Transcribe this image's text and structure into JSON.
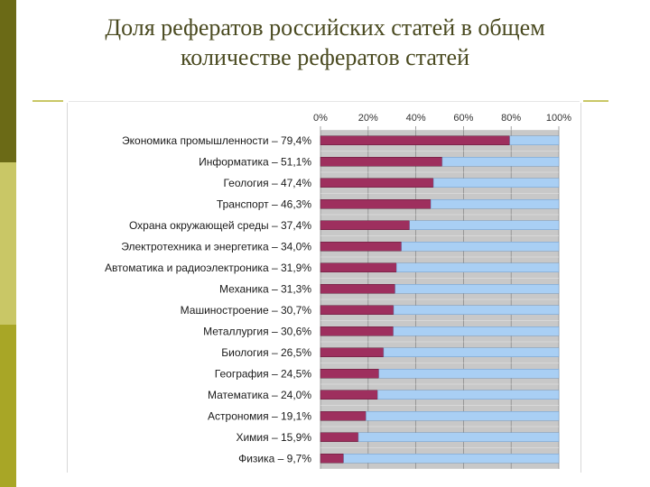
{
  "title": {
    "line1": "Доля рефератов российских статей в общем",
    "line2": "количестве рефератов статей"
  },
  "colors": {
    "share": "#9e2f5e",
    "rest": "#a9cff4",
    "grid": "#c0c0c0",
    "accent_dark": "#6b6a16",
    "accent_light": "#c9c766",
    "accent_mid": "#a8a626"
  },
  "chart_data": {
    "type": "bar",
    "orientation": "horizontal",
    "stacked": true,
    "title": "",
    "xlabel": "",
    "ylabel": "",
    "xlim": [
      0,
      100
    ],
    "x_ticks": [
      "0%",
      "20%",
      "40%",
      "60%",
      "80%",
      "100%"
    ],
    "x_axis_position": "top",
    "grid": true,
    "categories": [
      "Экономика промышленности – 79,4%",
      "Информатика – 51,1%",
      "Геология – 47,4%",
      "Транспорт – 46,3%",
      "Охрана окружающей среды – 37,4%",
      "Электротехника и энергетика – 34,0%",
      "Автоматика и радиоэлектроника – 31,9%",
      "Механика – 31,3%",
      "Машиностроение – 30,7%",
      "Металлургия – 30,6%",
      "Биология – 26,5%",
      "География – 24,5%",
      "Математика – 24,0%",
      "Астрономия – 19,1%",
      "Химия – 15,9%",
      "Физика – 9,7%"
    ],
    "series": [
      {
        "values": [
          79.4,
          51.1,
          47.4,
          46.3,
          37.4,
          34.0,
          31.9,
          31.3,
          30.7,
          30.6,
          26.5,
          24.5,
          24.0,
          19.1,
          15.9,
          9.7
        ]
      },
      {
        "values": [
          20.6,
          48.9,
          52.6,
          53.7,
          62.6,
          66.0,
          68.1,
          68.7,
          69.3,
          69.4,
          73.5,
          75.5,
          76.0,
          80.9,
          84.1,
          90.3
        ]
      }
    ]
  }
}
